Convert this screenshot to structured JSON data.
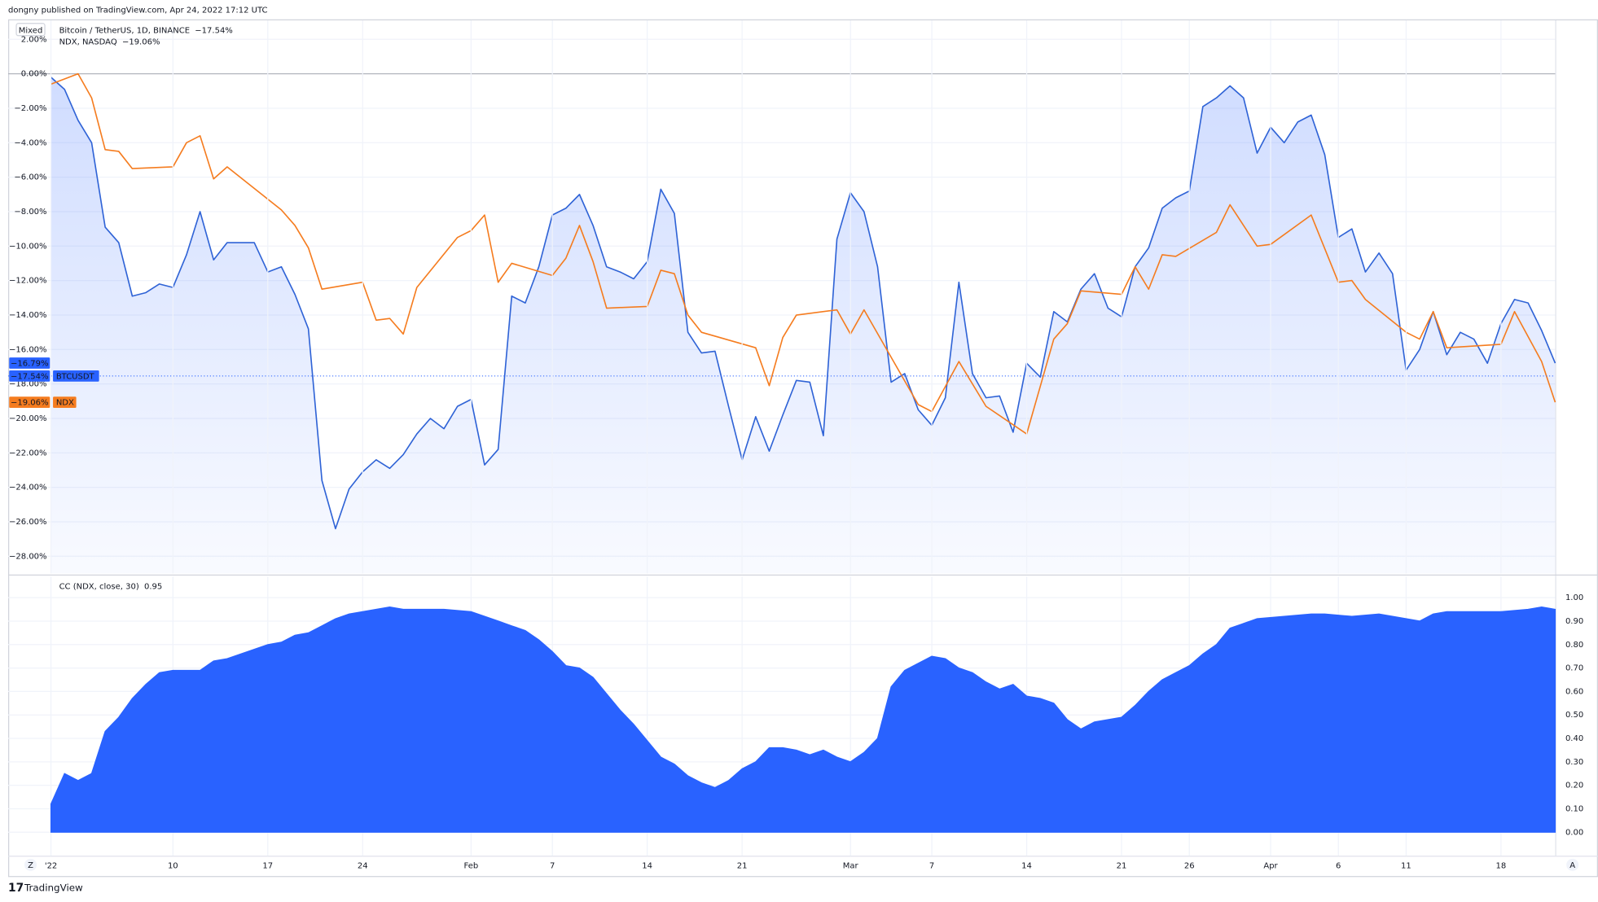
{
  "header": {
    "published": "dongny published on TradingView.com, Apr 24, 2022 17:12 UTC",
    "scale_button": "Mixed",
    "left_button": "Z",
    "right_button": "A",
    "footer_brand": "TradingView"
  },
  "chart_data": [
    {
      "type": "line",
      "zero_line": true,
      "grid": true,
      "xlim": [
        1,
        112
      ],
      "ylim": [
        -29,
        3.1
      ],
      "yticks": [
        {
          "value": 2,
          "label": "2.00%"
        },
        {
          "value": 0,
          "label": "0.00%"
        },
        {
          "value": -2,
          "label": "−2.00%"
        },
        {
          "value": -4,
          "label": "−4.00%"
        },
        {
          "value": -6,
          "label": "−6.00%"
        },
        {
          "value": -8,
          "label": "−8.00%"
        },
        {
          "value": -10,
          "label": "−10.00%"
        },
        {
          "value": -12,
          "label": "−12.00%"
        },
        {
          "value": -14,
          "label": "−14.00%"
        },
        {
          "value": -16,
          "label": "−16.00%"
        },
        {
          "value": -18,
          "label": "−18.00%"
        },
        {
          "value": -20,
          "label": "−20.00%"
        },
        {
          "value": -22,
          "label": "−22.00%"
        },
        {
          "value": -24,
          "label": "−24.00%"
        },
        {
          "value": -26,
          "label": "−26.00%"
        },
        {
          "value": -28,
          "label": "−28.00%"
        }
      ],
      "series": [
        {
          "name": "Bitcoin / TetherUS, 1D, BINANCE",
          "last_label": "−17.54%",
          "color": "#2f63d6",
          "area": true,
          "x": [
            1,
            2,
            3,
            4,
            5,
            6,
            7,
            8,
            9,
            10,
            11,
            12,
            13,
            14,
            15,
            16,
            17,
            18,
            19,
            20,
            21,
            22,
            23,
            24,
            25,
            26,
            27,
            28,
            29,
            30,
            31,
            32,
            33,
            34,
            35,
            36,
            37,
            38,
            39,
            40,
            41,
            42,
            43,
            44,
            45,
            46,
            47,
            48,
            49,
            50,
            51,
            52,
            53,
            54,
            55,
            56,
            57,
            58,
            59,
            60,
            61,
            62,
            63,
            64,
            65,
            66,
            67,
            68,
            69,
            70,
            71,
            72,
            73,
            74,
            75,
            76,
            77,
            78,
            79,
            80,
            81,
            82,
            83,
            84,
            85,
            86,
            87,
            88,
            89,
            90,
            91,
            92,
            93,
            94,
            95,
            96,
            97,
            98,
            99,
            100,
            101,
            102,
            103,
            104,
            105,
            106,
            107,
            108,
            109,
            110,
            111,
            112
          ],
          "values": [
            -0.2,
            -0.9,
            -2.7,
            -4.0,
            -8.9,
            -9.8,
            -12.9,
            -12.7,
            -12.2,
            -12.4,
            -10.5,
            -8.0,
            -10.8,
            -9.8,
            -9.8,
            -9.8,
            -11.5,
            -11.2,
            -12.8,
            -14.8,
            -23.6,
            -26.4,
            -24.1,
            -23.1,
            -22.4,
            -22.9,
            -22.1,
            -20.9,
            -20.0,
            -20.6,
            -19.3,
            -18.9,
            -22.7,
            -21.8,
            -12.9,
            -13.3,
            -11.2,
            -8.2,
            -7.8,
            -7.0,
            -8.8,
            -11.2,
            -11.5,
            -11.9,
            -10.9,
            -6.7,
            -8.1,
            -15.0,
            -16.2,
            -16.1,
            -19.3,
            -22.4,
            -19.9,
            -21.9,
            -19.8,
            -17.8,
            -17.9,
            -21.0,
            -9.6,
            -6.9,
            -8.0,
            -11.2,
            -17.9,
            -17.4,
            -19.5,
            -20.4,
            -18.8,
            -12.1,
            -17.4,
            -18.8,
            -18.7,
            -20.8,
            -16.8,
            -17.6,
            -13.8,
            -14.4,
            -12.5,
            -11.6,
            -13.6,
            -14.1,
            -11.2,
            -10.1,
            -7.8,
            -7.2,
            -6.8,
            -1.9,
            -1.4,
            -0.7,
            -1.4,
            -4.6,
            -3.1,
            -4.0,
            -2.8,
            -2.4,
            -4.7,
            -9.5,
            -9.0,
            -11.5,
            -10.4,
            -11.6,
            -17.2,
            -16.0,
            -13.8,
            -16.3,
            -15.0,
            -15.4,
            -16.8,
            -14.5,
            -13.1,
            -13.3,
            -14.9,
            -16.79
          ]
        },
        {
          "name": "NDX, NASDAQ",
          "last_label": "−19.06%",
          "color": "#f57c1f",
          "area": false,
          "x": [
            1,
            3,
            4,
            5,
            6,
            7,
            10,
            11,
            12,
            13,
            14,
            18,
            19,
            20,
            21,
            24,
            25,
            26,
            27,
            28,
            31,
            32,
            33,
            34,
            35,
            38,
            39,
            40,
            41,
            42,
            45,
            46,
            47,
            48,
            49,
            53,
            54,
            55,
            56,
            59,
            60,
            61,
            65,
            66,
            68,
            70,
            73,
            75,
            76,
            77,
            80,
            81,
            82,
            83,
            84,
            87,
            88,
            89,
            90,
            91,
            94,
            96,
            97,
            98,
            101,
            102,
            103,
            104,
            108,
            109,
            111,
            112
          ],
          "values": [
            -0.6,
            0.0,
            -1.4,
            -4.4,
            -4.5,
            -5.5,
            -5.4,
            -4.0,
            -3.6,
            -6.1,
            -5.4,
            -7.9,
            -8.8,
            -10.1,
            -12.5,
            -12.1,
            -14.3,
            -14.2,
            -15.1,
            -12.4,
            -9.5,
            -9.1,
            -8.2,
            -12.1,
            -11.0,
            -11.7,
            -10.7,
            -8.8,
            -10.9,
            -13.6,
            -13.5,
            -11.4,
            -11.6,
            -14.0,
            -15.0,
            -15.9,
            -18.1,
            -15.3,
            -14.0,
            -13.7,
            -15.1,
            -13.7,
            -19.2,
            -19.6,
            -16.7,
            -19.3,
            -20.9,
            -15.4,
            -14.5,
            -12.6,
            -12.8,
            -11.2,
            -12.5,
            -10.5,
            -10.6,
            -9.2,
            -7.6,
            -8.8,
            -10.0,
            -9.9,
            -8.2,
            -12.1,
            -12.0,
            -13.1,
            -15.0,
            -15.4,
            -13.8,
            -15.9,
            -15.7,
            -13.8,
            -16.7,
            -19.06
          ]
        }
      ],
      "badges": [
        {
          "value": -16.79,
          "label": "−16.79%",
          "color": "#2962ff"
        },
        {
          "value": -17.54,
          "label": "−17.54%",
          "text": "BTCUSDT",
          "color": "#2962ff",
          "line": true
        },
        {
          "value": -19.06,
          "label": "−19.06%",
          "text": "NDX",
          "color": "#f57c1f"
        }
      ]
    },
    {
      "type": "area",
      "grid": true,
      "xlim": [
        1,
        112
      ],
      "ylim": [
        -0.1,
        1.09
      ],
      "yticks": [
        {
          "value": 0,
          "label": "0.00"
        },
        {
          "value": 0.1,
          "label": "0.10"
        },
        {
          "value": 0.2,
          "label": "0.20"
        },
        {
          "value": 0.3,
          "label": "0.30"
        },
        {
          "value": 0.4,
          "label": "0.40"
        },
        {
          "value": 0.5,
          "label": "0.50"
        },
        {
          "value": 0.6,
          "label": "0.60"
        },
        {
          "value": 0.7,
          "label": "0.70"
        },
        {
          "value": 0.8,
          "label": "0.80"
        },
        {
          "value": 0.9,
          "label": "0.90"
        },
        {
          "value": 1,
          "label": "1.00"
        }
      ],
      "xticks": [
        {
          "value": 1,
          "label": "'22"
        },
        {
          "value": 10,
          "label": "10"
        },
        {
          "value": 17,
          "label": "17"
        },
        {
          "value": 24,
          "label": "24"
        },
        {
          "value": 32,
          "label": "Feb"
        },
        {
          "value": 38,
          "label": "7"
        },
        {
          "value": 45,
          "label": "14"
        },
        {
          "value": 52,
          "label": "21"
        },
        {
          "value": 60,
          "label": "Mar"
        },
        {
          "value": 66,
          "label": "7"
        },
        {
          "value": 73,
          "label": "14"
        },
        {
          "value": 80,
          "label": "21"
        },
        {
          "value": 85,
          "label": "26"
        },
        {
          "value": 91,
          "label": "Apr"
        },
        {
          "value": 96,
          "label": "6"
        },
        {
          "value": 101,
          "label": "11"
        },
        {
          "value": 108,
          "label": "18"
        }
      ],
      "series": [
        {
          "name": "CC (NDX, close, 30)",
          "last_label": "0.95",
          "color": "#2962ff",
          "x": [
            1,
            2,
            3,
            4,
            5,
            6,
            7,
            8,
            9,
            10,
            12,
            13,
            14,
            15,
            16,
            17,
            18,
            19,
            20,
            21,
            22,
            23,
            24,
            25,
            26,
            27,
            30,
            32,
            33,
            34,
            35,
            36,
            37,
            38,
            39,
            40,
            41,
            42,
            43,
            44,
            45,
            46,
            47,
            48,
            49,
            50,
            51,
            52,
            53,
            54,
            55,
            56,
            57,
            58,
            59,
            60,
            61,
            62,
            63,
            64,
            65,
            66,
            67,
            68,
            69,
            70,
            71,
            72,
            73,
            74,
            75,
            76,
            77,
            78,
            79,
            80,
            81,
            82,
            83,
            84,
            85,
            86,
            87,
            88,
            89,
            90,
            92,
            94,
            95,
            97,
            99,
            100,
            102,
            103,
            104,
            106,
            108,
            110,
            111,
            112
          ],
          "values": [
            0.12,
            0.25,
            0.22,
            0.25,
            0.43,
            0.49,
            0.57,
            0.63,
            0.68,
            0.69,
            0.69,
            0.73,
            0.74,
            0.76,
            0.78,
            0.8,
            0.81,
            0.84,
            0.85,
            0.88,
            0.91,
            0.93,
            0.94,
            0.95,
            0.96,
            0.95,
            0.95,
            0.94,
            0.92,
            0.9,
            0.88,
            0.86,
            0.82,
            0.77,
            0.71,
            0.7,
            0.66,
            0.59,
            0.52,
            0.46,
            0.39,
            0.32,
            0.29,
            0.24,
            0.21,
            0.19,
            0.22,
            0.27,
            0.3,
            0.36,
            0.36,
            0.35,
            0.33,
            0.35,
            0.32,
            0.3,
            0.34,
            0.4,
            0.62,
            0.69,
            0.72,
            0.75,
            0.74,
            0.7,
            0.68,
            0.64,
            0.61,
            0.63,
            0.58,
            0.57,
            0.55,
            0.48,
            0.44,
            0.47,
            0.48,
            0.49,
            0.54,
            0.6,
            0.65,
            0.68,
            0.71,
            0.76,
            0.8,
            0.87,
            0.89,
            0.91,
            0.92,
            0.93,
            0.93,
            0.92,
            0.93,
            0.92,
            0.9,
            0.93,
            0.94,
            0.94,
            0.94,
            0.95,
            0.96,
            0.95
          ]
        }
      ]
    }
  ]
}
